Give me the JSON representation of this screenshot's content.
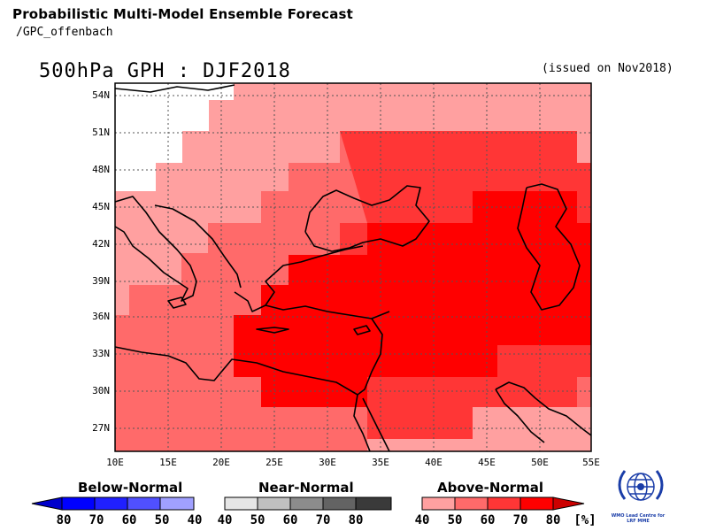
{
  "header": {
    "title": "Probabilistic Multi-Model Ensemble Forecast",
    "subtitle": "/GPC_offenbach"
  },
  "map": {
    "title": "500hPa GPH : DJF2018",
    "issued": "(issued on Nov2018)",
    "lat_labels": [
      "54N",
      "51N",
      "48N",
      "45N",
      "42N",
      "39N",
      "36N",
      "33N",
      "30N",
      "27N"
    ],
    "lon_labels": [
      "10E",
      "15E",
      "20E",
      "25E",
      "30E",
      "35E",
      "40E",
      "45E",
      "50E",
      "55E"
    ],
    "extent": {
      "lon_min": 10,
      "lon_max": 55,
      "lat_min": 25,
      "lat_max": 55
    }
  },
  "legend": {
    "below": {
      "title": "Below-Normal",
      "labels": [
        "80",
        "70",
        "60",
        "50",
        "40"
      ],
      "colors": [
        "#0000cc",
        "#0000ff",
        "#3a3aff",
        "#7070ff",
        "#a0a0ff"
      ]
    },
    "near": {
      "title": "Near-Normal",
      "labels": [
        "40",
        "50",
        "60",
        "70",
        "80"
      ],
      "colors": [
        "#e6e6e6",
        "#c0c0c0",
        "#8c8c8c",
        "#636363",
        "#3a3a3a"
      ]
    },
    "above": {
      "title": "Above-Normal",
      "labels": [
        "40",
        "50",
        "60",
        "70",
        "80"
      ],
      "unit": "[%]",
      "colors": [
        "#ffa0a0",
        "#ff6a6a",
        "#ff3636",
        "#ff0000",
        "#cc0000"
      ]
    }
  },
  "logo": {
    "text": "WMO Lead Centre for LRF MME"
  }
}
